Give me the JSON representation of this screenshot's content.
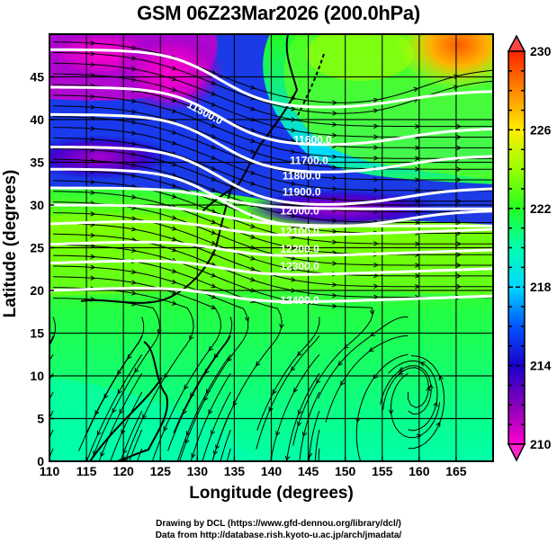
{
  "title": "GSM 06Z23Mar2026 (200.0hPa)",
  "x_axis": {
    "label": "Longitude (degrees)",
    "range": [
      110,
      170
    ],
    "ticks": [
      "110",
      "115",
      "120",
      "125",
      "130",
      "135",
      "140",
      "145",
      "150",
      "155",
      "160",
      "165"
    ]
  },
  "y_axis": {
    "label": "Latitude  (degrees)",
    "range": [
      0,
      50
    ],
    "ticks": [
      "0",
      "5",
      "10",
      "15",
      "20",
      "25",
      "30",
      "35",
      "40",
      "45"
    ]
  },
  "colorbar": {
    "ticks": [
      "210",
      "214",
      "218",
      "222",
      "226",
      "230"
    ],
    "range": [
      210,
      230
    ],
    "colors": [
      "#ff00cc",
      "#8800bb",
      "#1a00cc",
      "#0055ff",
      "#00d8ff",
      "#00ffb0",
      "#22ff22",
      "#99ff00",
      "#ffee00",
      "#ff8800",
      "#ff2200"
    ]
  },
  "contour_labels": [
    {
      "text": "11500.0",
      "lon": 128.5,
      "lat": 41.5
    },
    {
      "text": "11600.0",
      "lon": 143,
      "lat": 37.2
    },
    {
      "text": "11700.0",
      "lon": 142.5,
      "lat": 34.8
    },
    {
      "text": "11800.0",
      "lon": 141.5,
      "lat": 33.0
    },
    {
      "text": "11900.0",
      "lon": 141.5,
      "lat": 31.1
    },
    {
      "text": "12000.0",
      "lon": 141.2,
      "lat": 28.9
    },
    {
      "text": "12100.0",
      "lon": 141.2,
      "lat": 26.5
    },
    {
      "text": "12200.0",
      "lon": 141.2,
      "lat": 24.4
    },
    {
      "text": "12300.0",
      "lon": 141.2,
      "lat": 22.4
    },
    {
      "text": "12400.0",
      "lon": 141.2,
      "lat": 18.4
    }
  ],
  "credits": [
    "Drawing by DCL (https://www.gfd-dennou.org/library/dcl/)",
    "Data from http://database.rish.kyoto-u.ac.jp/arch/jmadata/"
  ]
}
